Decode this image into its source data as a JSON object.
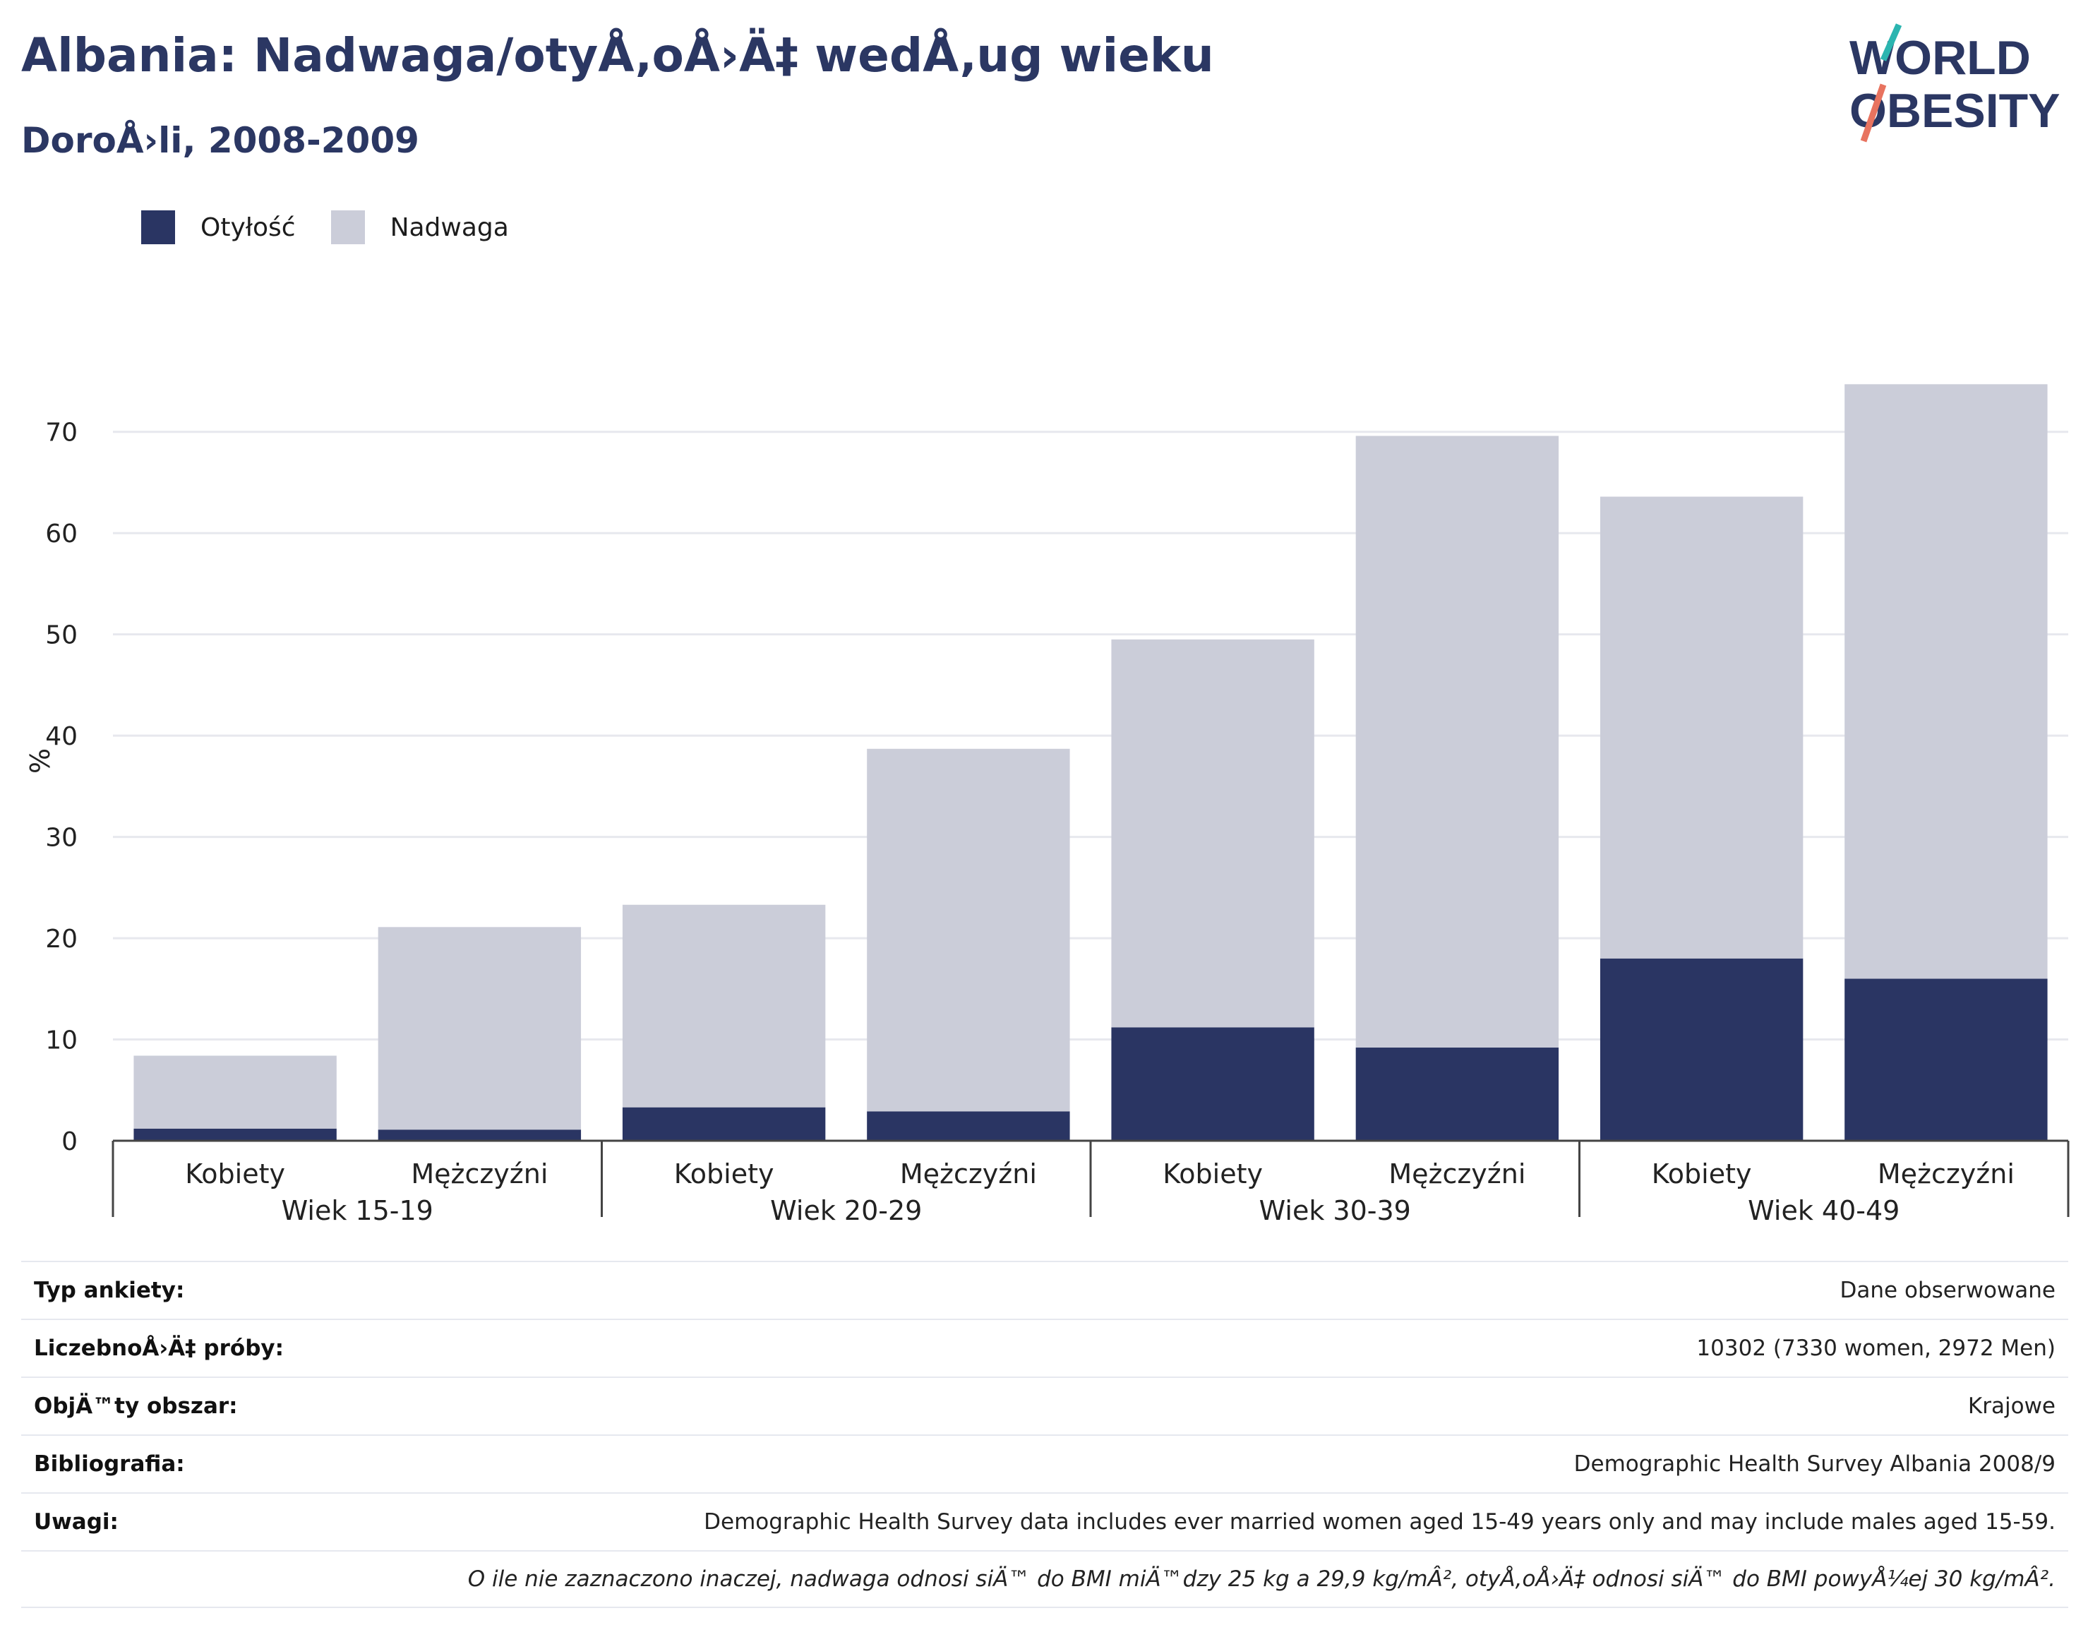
{
  "header": {
    "title": "Albania: Nadwaga/otyÅ‚oÅ›Ä‡ wedÅ‚ug wieku",
    "subtitle": "DoroÅ›li, 2008-2009"
  },
  "logo": {
    "line1": "WORLD",
    "line2": "OBESITY",
    "accent_teal": "#2bb5b0",
    "accent_coral": "#e8735f",
    "text_color": "#2b3763"
  },
  "legend": [
    {
      "label": "Otyłość",
      "color": "#2a3563"
    },
    {
      "label": "Nadwaga",
      "color": "#cbcdd9"
    }
  ],
  "chart_data": {
    "type": "bar",
    "stacked": true,
    "ylabel": "%",
    "ylim": [
      0,
      75
    ],
    "yticks": [
      0,
      10,
      20,
      30,
      40,
      50,
      60,
      70
    ],
    "grid": true,
    "legend_position": "top-left",
    "groups": [
      "Wiek 15-19",
      "Wiek 20-29",
      "Wiek 30-39",
      "Wiek 40-49"
    ],
    "categories": [
      "Kobiety",
      "Mężczyźni",
      "Kobiety",
      "Mężczyźni",
      "Kobiety",
      "Mężczyźni",
      "Kobiety",
      "Mężczyźni"
    ],
    "series": [
      {
        "name": "Otyłość",
        "color": "#2a3563",
        "values": [
          1.2,
          1.1,
          3.3,
          2.9,
          11.2,
          9.2,
          18.0,
          16.0
        ]
      },
      {
        "name": "Nadwaga",
        "color": "#cbcdd9",
        "values": [
          7.2,
          20.0,
          20.0,
          35.8,
          38.3,
          60.4,
          45.6,
          58.7
        ]
      }
    ]
  },
  "info": {
    "rows": [
      {
        "label": "Typ ankiety:",
        "value": "Dane obserwowane"
      },
      {
        "label": "LiczebnoÅ›Ä‡ próby:",
        "value": "10302 (7330 women, 2972 Men)"
      },
      {
        "label": "ObjÄ™ty obszar:",
        "value": "Krajowe"
      },
      {
        "label": "Bibliografia:",
        "value": "Demographic Health Survey Albania 2008/9"
      },
      {
        "label": "Uwagi:",
        "value": "Demographic Health Survey data includes ever married women aged 15-49 years only and may include males aged 15-59."
      }
    ],
    "note": "O ile nie zaznaczono inaczej, nadwaga odnosi siÄ™ do BMI miÄ™dzy 25 kg a 29,9 kg/mÂ², otyÅ‚oÅ›Ä‡ odnosi siÄ™ do BMI powyÅ¼ej 30 kg/mÂ²."
  }
}
